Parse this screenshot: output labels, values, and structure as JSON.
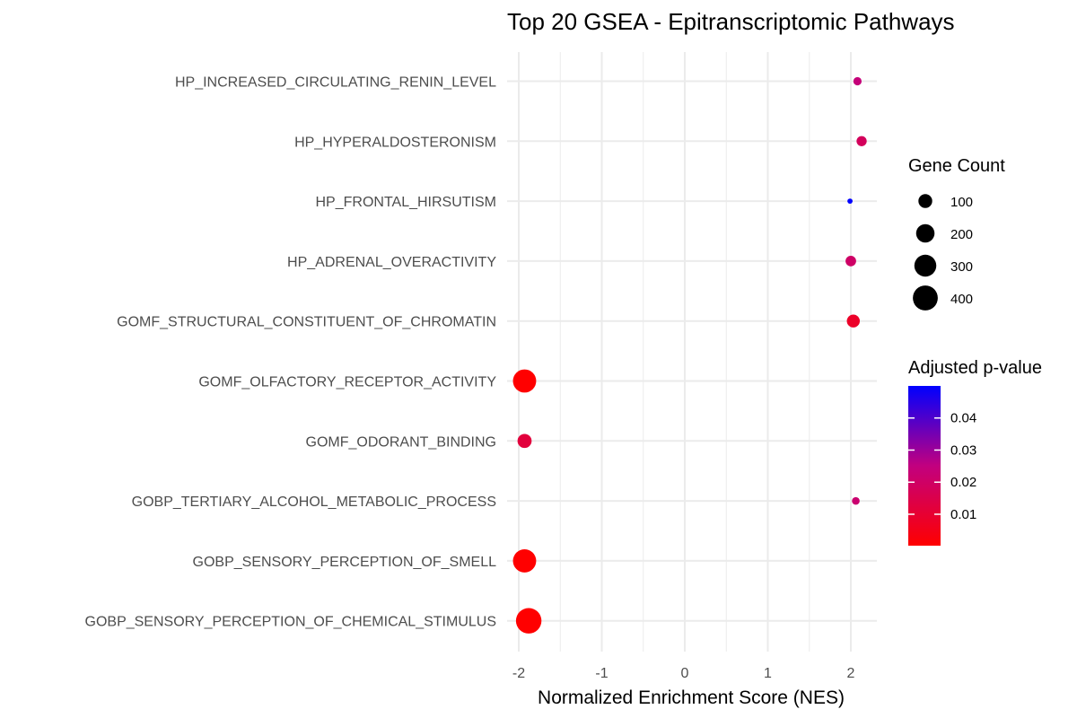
{
  "chart_data": {
    "type": "scatter",
    "title": "Top 20 GSEA - Epitranscriptomic Pathways",
    "xlabel": "Normalized Enrichment Score (NES)",
    "ylabel": "",
    "xlim": [
      -2.2,
      2.35
    ],
    "x_ticks": [
      -2,
      -1,
      0,
      1,
      2
    ],
    "x_tick_labels": [
      "-2",
      "-1",
      "0",
      "1",
      "2"
    ],
    "grid": true,
    "categories": [
      "HP_INCREASED_CIRCULATING_RENIN_LEVEL",
      "HP_HYPERALDOSTERONISM",
      "HP_FRONTAL_HIRSUTISM",
      "HP_ADRENAL_OVERACTIVITY",
      "GOMF_STRUCTURAL_CONSTITUENT_OF_CHROMATIN",
      "GOMF_OLFACTORY_RECEPTOR_ACTIVITY",
      "GOMF_ODORANT_BINDING",
      "GOBP_TERTIARY_ALCOHOL_METABOLIC_PROCESS",
      "GOBP_SENSORY_PERCEPTION_OF_SMELL",
      "GOBP_SENSORY_PERCEPTION_OF_CHEMICAL_STIMULUS"
    ],
    "points": [
      {
        "pathway": "HP_INCREASED_CIRCULATING_RENIN_LEVEL",
        "nes": 2.08,
        "gene_count": 25,
        "p_adjust": 0.024
      },
      {
        "pathway": "HP_HYPERALDOSTERONISM",
        "nes": 2.13,
        "gene_count": 45,
        "p_adjust": 0.018
      },
      {
        "pathway": "HP_FRONTAL_HIRSUTISM",
        "nes": 1.99,
        "gene_count": 5,
        "p_adjust": 0.05
      },
      {
        "pathway": "HP_ADRENAL_OVERACTIVITY",
        "nes": 2.0,
        "gene_count": 50,
        "p_adjust": 0.02
      },
      {
        "pathway": "GOMF_STRUCTURAL_CONSTITUENT_OF_CHROMATIN",
        "nes": 2.03,
        "gene_count": 85,
        "p_adjust": 0.008
      },
      {
        "pathway": "GOMF_OLFACTORY_RECEPTOR_ACTIVITY",
        "nes": -1.93,
        "gene_count": 340,
        "p_adjust": 0.0002
      },
      {
        "pathway": "GOMF_ODORANT_BINDING",
        "nes": -1.93,
        "gene_count": 105,
        "p_adjust": 0.012
      },
      {
        "pathway": "GOBP_TERTIARY_ALCOHOL_METABOLIC_PROCESS",
        "nes": 2.06,
        "gene_count": 20,
        "p_adjust": 0.022
      },
      {
        "pathway": "GOBP_SENSORY_PERCEPTION_OF_SMELL",
        "nes": -1.93,
        "gene_count": 340,
        "p_adjust": 0.0002
      },
      {
        "pathway": "GOBP_SENSORY_PERCEPTION_OF_CHEMICAL_STIMULUS",
        "nes": -1.88,
        "gene_count": 420,
        "p_adjust": 0.0002
      }
    ],
    "size_legend": {
      "title": "Gene Count",
      "values": [
        100,
        200,
        300,
        400
      ],
      "labels": [
        "100",
        "200",
        "300",
        "400"
      ]
    },
    "color_legend": {
      "title": "Adjusted p-value",
      "range": [
        0.0002,
        0.05
      ],
      "ticks": [
        0.04,
        0.03,
        0.02,
        0.01
      ],
      "tick_labels": [
        "0.04",
        "0.03",
        "0.02",
        "0.01"
      ],
      "low_color": "#ff0000",
      "high_color": "#0000ff"
    },
    "colors": {
      "grid": "#ebebeb",
      "tick_text": "#4d4d4d",
      "title_text": "#000000",
      "legend_point": "#000000"
    }
  }
}
